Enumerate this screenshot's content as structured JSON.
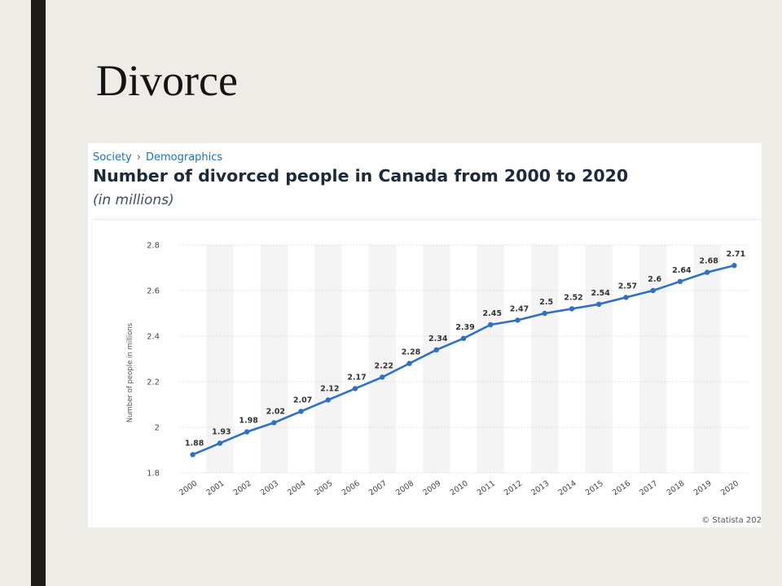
{
  "slide": {
    "title": "Divorce"
  },
  "source_card": {
    "breadcrumb": [
      "Society",
      "Demographics"
    ],
    "breadcrumb_separator": "›",
    "copyright": "© Statista 202"
  },
  "colors": {
    "line": "#2f6fc6",
    "band": "#f4f4f4",
    "grid": "#d9d9d9",
    "background": "#eeece6",
    "accent_bar": "#1d1d15"
  },
  "chart_data": {
    "type": "line",
    "title": "Number of divorced people in Canada from 2000 to 2020",
    "subtitle": "(in millions)",
    "xlabel": "",
    "ylabel": "Number of people in millions",
    "categories": [
      "2000",
      "2001",
      "2002",
      "2003",
      "2004",
      "2005",
      "2006",
      "2007",
      "2008",
      "2009",
      "2010",
      "2011",
      "2012",
      "2013",
      "2014",
      "2015",
      "2016",
      "2017",
      "2018",
      "2019",
      "2020"
    ],
    "values": [
      1.88,
      1.93,
      1.98,
      2.02,
      2.07,
      2.12,
      2.17,
      2.22,
      2.28,
      2.34,
      2.39,
      2.45,
      2.47,
      2.5,
      2.52,
      2.54,
      2.57,
      2.6,
      2.64,
      2.68,
      2.71
    ],
    "data_labels": [
      "1.88",
      "1.93",
      "1.98",
      "2.02",
      "2.07",
      "2.12",
      "2.17",
      "2.22",
      "2.28",
      "2.34",
      "2.39",
      "2.45",
      "2.47",
      "2.5",
      "2.52",
      "2.54",
      "2.57",
      "2.6",
      "2.64",
      "2.68",
      "2.71"
    ],
    "ylim": [
      1.8,
      2.8
    ],
    "yticks": [
      1.8,
      2,
      2.2,
      2.4,
      2.6,
      2.8
    ],
    "ytick_labels": [
      "1.8",
      "2",
      "2.2",
      "2.4",
      "2.6",
      "2.8"
    ],
    "grid": true,
    "legend": "none"
  }
}
